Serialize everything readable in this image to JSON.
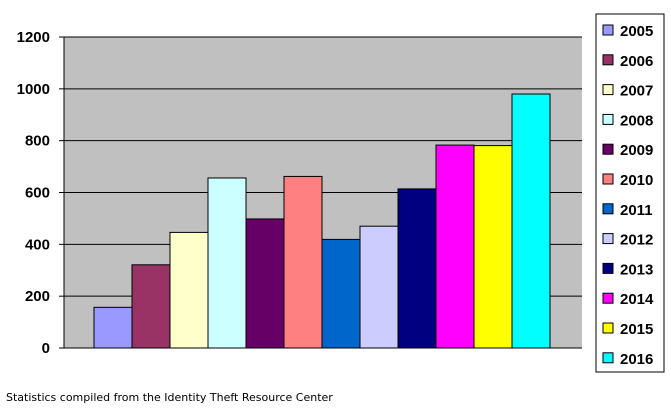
{
  "caption": "Statistics compiled from the Identity Theft Resource Center",
  "chart_data": {
    "type": "bar",
    "title": "",
    "xlabel": "",
    "ylabel": "",
    "ylim": [
      0,
      1200
    ],
    "y_ticks": [
      "0",
      "200",
      "400",
      "600",
      "800",
      "1000",
      "1200"
    ],
    "y_tick_values": [
      0,
      200,
      400,
      600,
      800,
      1000,
      1200
    ],
    "grid": "horizontal",
    "legend_placement": "right",
    "plot_background": "#c0c0c0",
    "series": [
      {
        "name": "2005",
        "value": 157,
        "color": "#9999ff"
      },
      {
        "name": "2006",
        "value": 321,
        "color": "#993366"
      },
      {
        "name": "2007",
        "value": 446,
        "color": "#ffffcc"
      },
      {
        "name": "2008",
        "value": 656,
        "color": "#ccffff"
      },
      {
        "name": "2009",
        "value": 498,
        "color": "#660066"
      },
      {
        "name": "2010",
        "value": 662,
        "color": "#ff8080"
      },
      {
        "name": "2011",
        "value": 419,
        "color": "#0066cc"
      },
      {
        "name": "2012",
        "value": 470,
        "color": "#ccccff"
      },
      {
        "name": "2013",
        "value": 614,
        "color": "#000080"
      },
      {
        "name": "2014",
        "value": 783,
        "color": "#ff00ff"
      },
      {
        "name": "2015",
        "value": 781,
        "color": "#ffff00"
      },
      {
        "name": "2016",
        "value": 980,
        "color": "#00ffff"
      }
    ]
  }
}
